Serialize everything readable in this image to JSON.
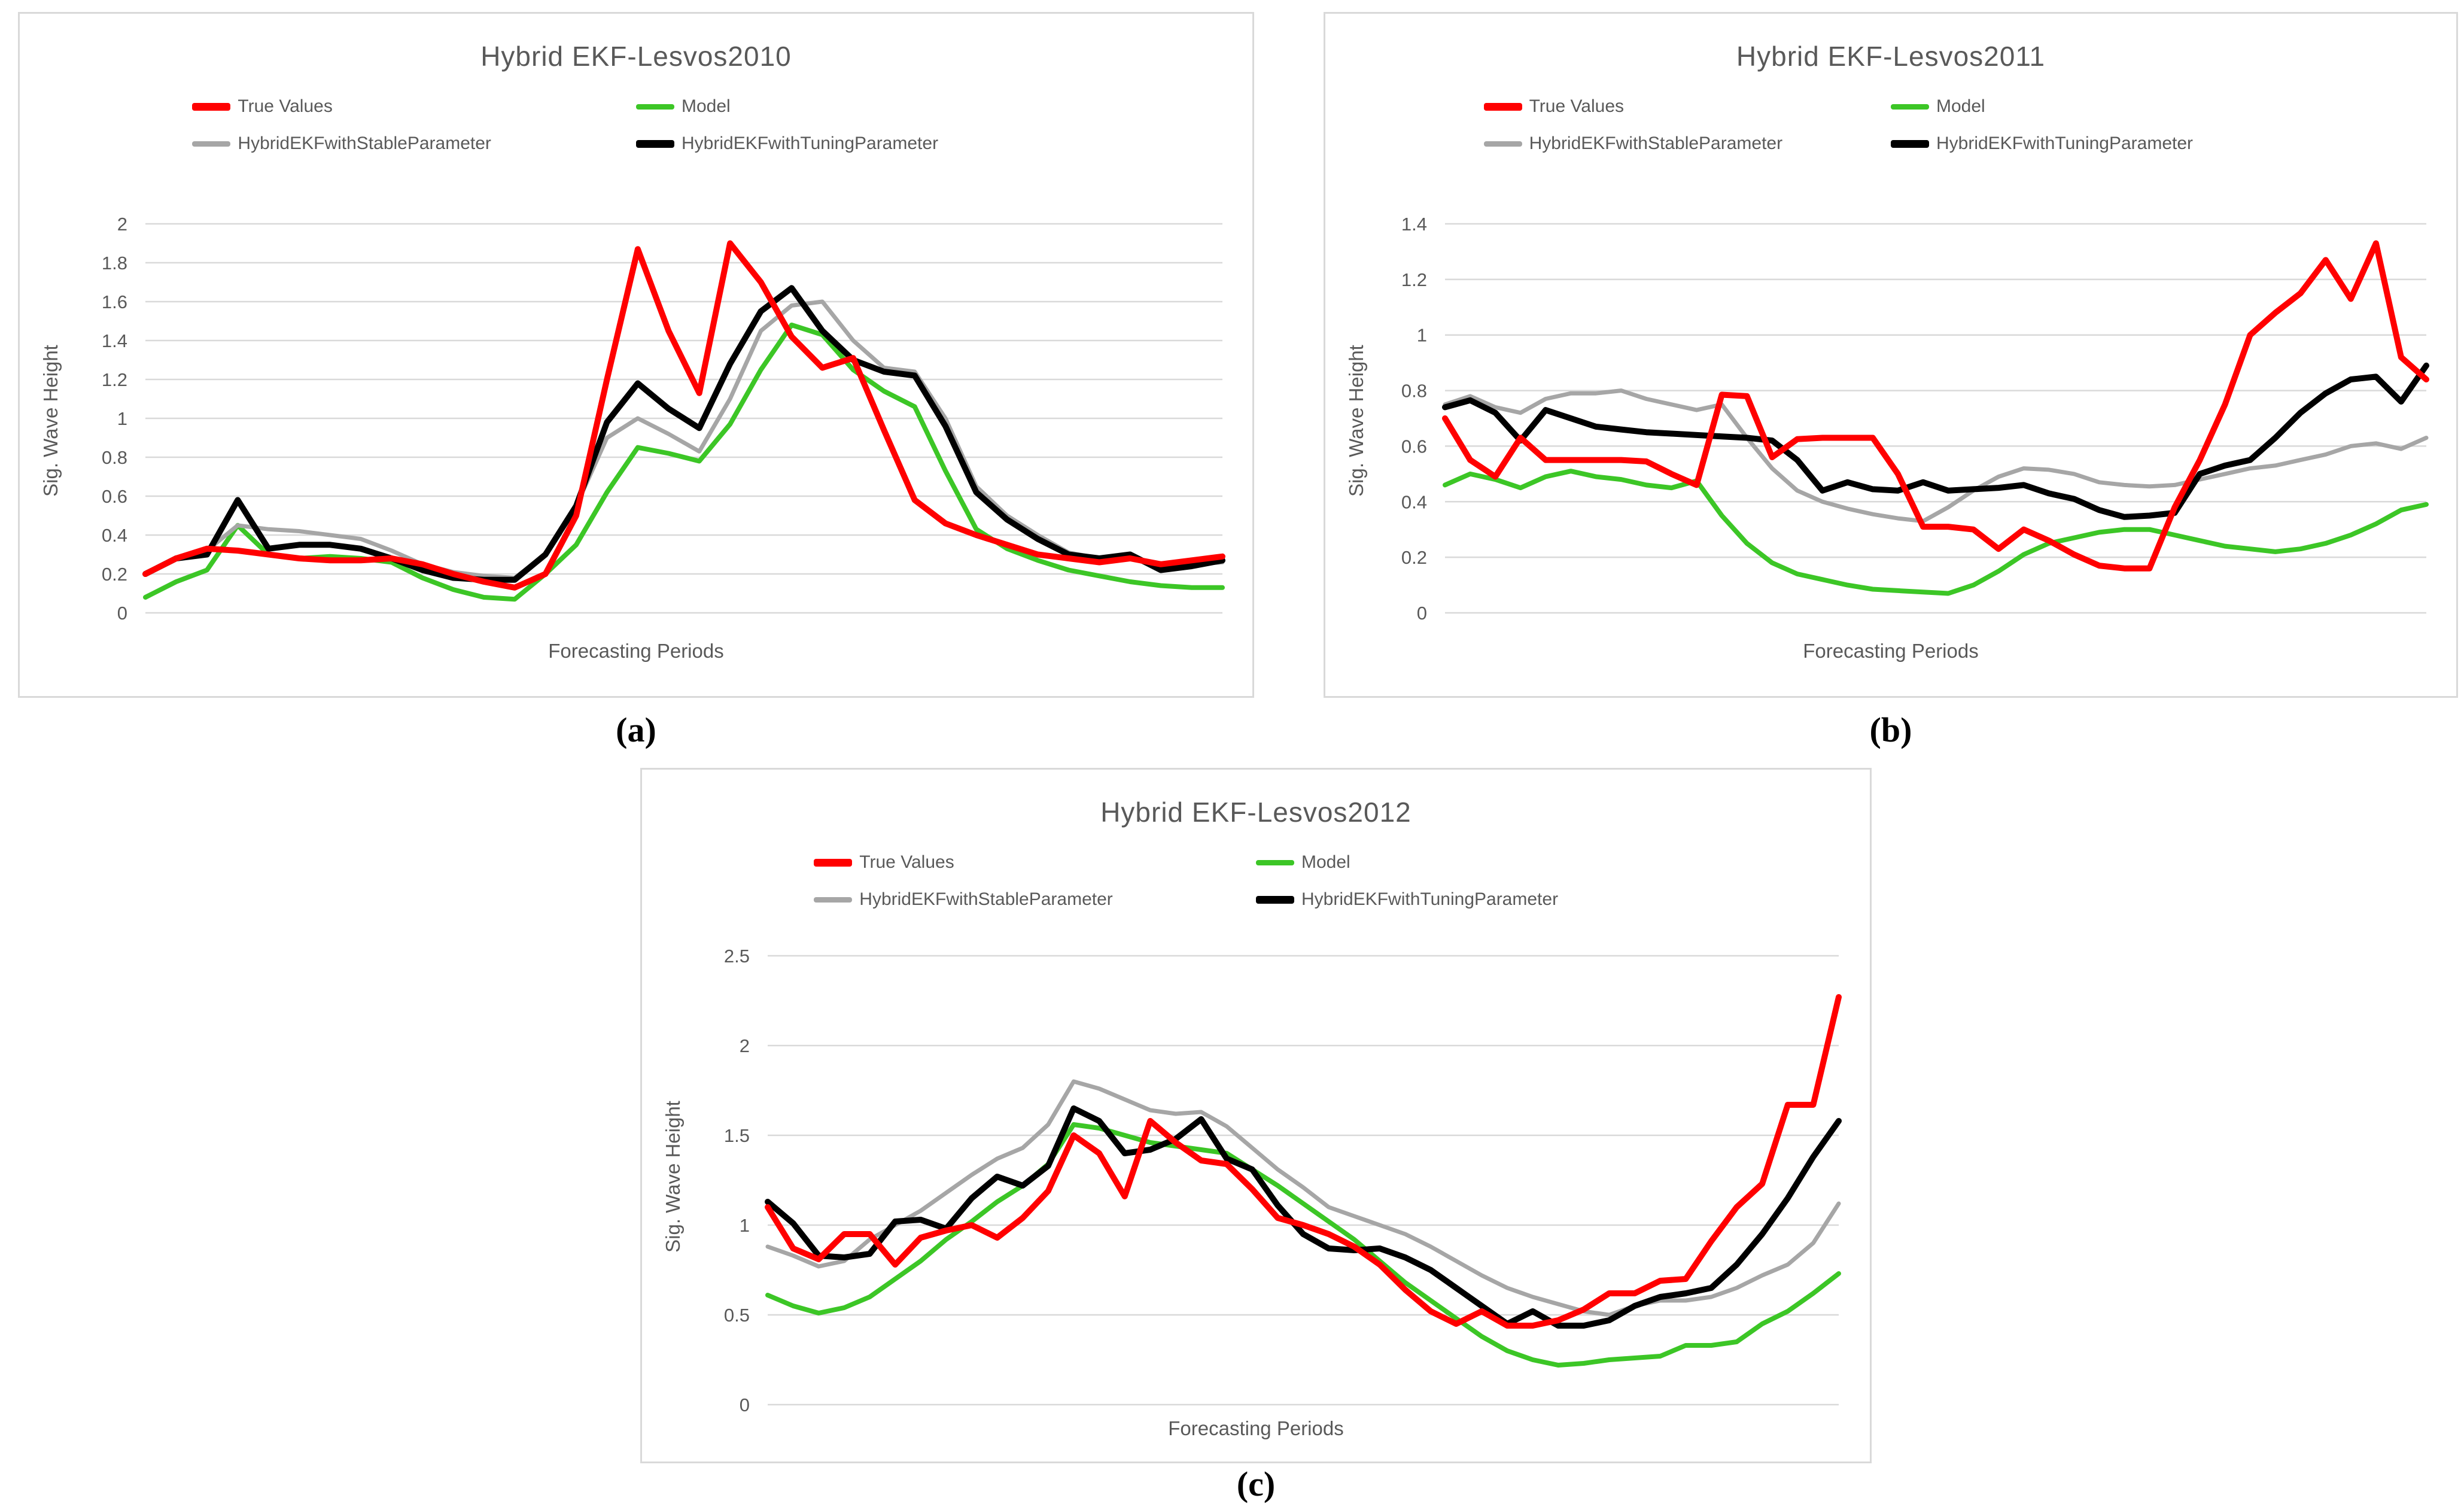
{
  "figure": {
    "background": "#ffffff",
    "grid_color": "#d9d9d9",
    "text_color": "#595959",
    "legend_position": "top"
  },
  "chart_data": [
    {
      "type": "line",
      "title": "Hybrid EKF-Lesvos2010",
      "caption": "(a)",
      "xlabel": "Forecasting Periods",
      "ylabel": "Sig. Wave Height",
      "ylim": [
        0,
        2
      ],
      "yticks": [
        "2",
        "1.8",
        "1.6",
        "1.4",
        "1.2",
        "1",
        "0.8",
        "0.6",
        "0.4",
        "0.2",
        "0"
      ],
      "grid": "horizontal",
      "series": [
        {
          "name": "True Values",
          "color": "#ff0000",
          "width": 10,
          "values": [
            0.2,
            0.28,
            0.33,
            0.32,
            0.3,
            0.28,
            0.27,
            0.27,
            0.28,
            0.25,
            0.2,
            0.16,
            0.13,
            0.2,
            0.5,
            1.2,
            1.87,
            1.45,
            1.13,
            1.9,
            1.7,
            1.42,
            1.26,
            1.31,
            0.94,
            0.58,
            0.46,
            0.4,
            0.35,
            0.3,
            0.28,
            0.26,
            0.28,
            0.25,
            0.27,
            0.29
          ]
        },
        {
          "name": "Model",
          "color": "#3cc626",
          "width": 8,
          "values": [
            0.08,
            0.16,
            0.22,
            0.45,
            0.3,
            0.28,
            0.29,
            0.28,
            0.26,
            0.18,
            0.12,
            0.08,
            0.07,
            0.2,
            0.35,
            0.62,
            0.85,
            0.82,
            0.78,
            0.97,
            1.25,
            1.48,
            1.43,
            1.25,
            1.14,
            1.06,
            0.73,
            0.43,
            0.33,
            0.27,
            0.22,
            0.19,
            0.16,
            0.14,
            0.13,
            0.13
          ]
        },
        {
          "name": "HybridEKFwithStableParameter",
          "color": "#a6a6a6",
          "width": 7,
          "values": [
            0.2,
            0.28,
            0.32,
            0.45,
            0.43,
            0.42,
            0.4,
            0.38,
            0.32,
            0.25,
            0.21,
            0.19,
            0.18,
            0.3,
            0.55,
            0.9,
            1.0,
            0.92,
            0.83,
            1.1,
            1.45,
            1.58,
            1.6,
            1.4,
            1.26,
            1.24,
            1.0,
            0.65,
            0.5,
            0.4,
            0.31,
            0.28,
            0.28,
            0.24,
            0.25,
            0.26
          ]
        },
        {
          "name": "HybridEKFwithTuningParameter",
          "color": "#000000",
          "width": 10,
          "values": [
            0.2,
            0.28,
            0.3,
            0.58,
            0.33,
            0.35,
            0.35,
            0.33,
            0.28,
            0.22,
            0.18,
            0.17,
            0.17,
            0.3,
            0.55,
            0.98,
            1.18,
            1.05,
            0.95,
            1.28,
            1.55,
            1.67,
            1.45,
            1.3,
            1.24,
            1.22,
            0.96,
            0.62,
            0.48,
            0.38,
            0.3,
            0.28,
            0.3,
            0.22,
            0.24,
            0.27
          ]
        }
      ]
    },
    {
      "type": "line",
      "title": "Hybrid EKF-Lesvos2011",
      "caption": "(b)",
      "xlabel": "Forecasting Periods",
      "ylabel": "Sig. Wave Height",
      "ylim": [
        0,
        1.4
      ],
      "yticks": [
        "1.4",
        "1.2",
        "1",
        "0.8",
        "0.6",
        "0.4",
        "0.2",
        "0"
      ],
      "grid": "horizontal",
      "series": [
        {
          "name": "True Values",
          "color": "#ff0000",
          "width": 10,
          "values": [
            0.7,
            0.55,
            0.49,
            0.63,
            0.55,
            0.55,
            0.55,
            0.55,
            0.545,
            0.5,
            0.46,
            0.785,
            0.78,
            0.56,
            0.625,
            0.63,
            0.63,
            0.63,
            0.5,
            0.31,
            0.31,
            0.3,
            0.23,
            0.3,
            0.26,
            0.21,
            0.17,
            0.16,
            0.16,
            0.38,
            0.55,
            0.75,
            1.0,
            1.08,
            1.15,
            1.27,
            1.13,
            1.33,
            0.92,
            0.84
          ]
        },
        {
          "name": "Model",
          "color": "#3cc626",
          "width": 8,
          "values": [
            0.46,
            0.5,
            0.48,
            0.45,
            0.49,
            0.51,
            0.49,
            0.48,
            0.46,
            0.45,
            0.475,
            0.35,
            0.25,
            0.18,
            0.14,
            0.12,
            0.1,
            0.085,
            0.08,
            0.075,
            0.07,
            0.1,
            0.15,
            0.21,
            0.25,
            0.27,
            0.29,
            0.3,
            0.3,
            0.28,
            0.26,
            0.24,
            0.23,
            0.22,
            0.23,
            0.25,
            0.28,
            0.32,
            0.37,
            0.39
          ]
        },
        {
          "name": "HybridEKFwithStableParameter",
          "color": "#a6a6a6",
          "width": 7,
          "values": [
            0.75,
            0.78,
            0.74,
            0.72,
            0.77,
            0.79,
            0.79,
            0.8,
            0.77,
            0.75,
            0.73,
            0.75,
            0.63,
            0.52,
            0.44,
            0.4,
            0.375,
            0.355,
            0.34,
            0.33,
            0.38,
            0.44,
            0.49,
            0.52,
            0.515,
            0.5,
            0.47,
            0.46,
            0.455,
            0.46,
            0.48,
            0.5,
            0.52,
            0.53,
            0.55,
            0.57,
            0.6,
            0.61,
            0.59,
            0.63
          ]
        },
        {
          "name": "HybridEKFwithTuningParameter",
          "color": "#000000",
          "width": 10,
          "values": [
            0.74,
            0.765,
            0.72,
            0.62,
            0.73,
            0.7,
            0.67,
            0.66,
            0.65,
            0.645,
            0.64,
            0.635,
            0.63,
            0.62,
            0.55,
            0.44,
            0.47,
            0.445,
            0.44,
            0.47,
            0.44,
            0.445,
            0.45,
            0.46,
            0.43,
            0.41,
            0.37,
            0.345,
            0.35,
            0.36,
            0.5,
            0.53,
            0.55,
            0.63,
            0.72,
            0.79,
            0.84,
            0.85,
            0.76,
            0.89
          ]
        }
      ]
    },
    {
      "type": "line",
      "title": "Hybrid EKF-Lesvos2012",
      "caption": "(c)",
      "xlabel": "Forecasting Periods",
      "ylabel": "Sig. Wave Height",
      "ylim": [
        0,
        2.5
      ],
      "yticks": [
        "2.5",
        "2",
        "1.5",
        "1",
        "0.5",
        "0"
      ],
      "grid": "horizontal",
      "series": [
        {
          "name": "True Values",
          "color": "#ff0000",
          "width": 10,
          "values": [
            1.1,
            0.87,
            0.81,
            0.95,
            0.95,
            0.78,
            0.93,
            0.97,
            1.0,
            0.93,
            1.04,
            1.19,
            1.5,
            1.4,
            1.16,
            1.58,
            1.46,
            1.36,
            1.34,
            1.2,
            1.04,
            1.0,
            0.95,
            0.88,
            0.78,
            0.64,
            0.52,
            0.45,
            0.52,
            0.44,
            0.44,
            0.47,
            0.53,
            0.62,
            0.62,
            0.69,
            0.7,
            0.91,
            1.1,
            1.23,
            1.67,
            1.67,
            2.27
          ]
        },
        {
          "name": "Model",
          "color": "#3cc626",
          "width": 8,
          "values": [
            0.61,
            0.55,
            0.51,
            0.54,
            0.6,
            0.7,
            0.8,
            0.92,
            1.02,
            1.13,
            1.22,
            1.34,
            1.56,
            1.54,
            1.5,
            1.46,
            1.44,
            1.42,
            1.4,
            1.31,
            1.22,
            1.12,
            1.02,
            0.92,
            0.8,
            0.68,
            0.58,
            0.48,
            0.38,
            0.3,
            0.25,
            0.22,
            0.23,
            0.25,
            0.26,
            0.27,
            0.33,
            0.33,
            0.35,
            0.45,
            0.52,
            0.62,
            0.73
          ]
        },
        {
          "name": "HybridEKFwithStableParameter",
          "color": "#a6a6a6",
          "width": 7,
          "values": [
            0.88,
            0.83,
            0.77,
            0.8,
            0.92,
            1.0,
            1.08,
            1.18,
            1.28,
            1.37,
            1.43,
            1.56,
            1.8,
            1.76,
            1.7,
            1.64,
            1.62,
            1.63,
            1.55,
            1.43,
            1.31,
            1.21,
            1.1,
            1.05,
            1.0,
            0.95,
            0.88,
            0.8,
            0.72,
            0.65,
            0.6,
            0.56,
            0.52,
            0.5,
            0.55,
            0.58,
            0.58,
            0.6,
            0.65,
            0.72,
            0.78,
            0.9,
            1.12
          ]
        },
        {
          "name": "HybridEKFwithTuningParameter",
          "color": "#000000",
          "width": 10,
          "values": [
            1.13,
            1.01,
            0.83,
            0.82,
            0.84,
            1.02,
            1.03,
            0.98,
            1.15,
            1.27,
            1.22,
            1.33,
            1.65,
            1.58,
            1.4,
            1.42,
            1.48,
            1.59,
            1.37,
            1.31,
            1.11,
            0.95,
            0.87,
            0.86,
            0.87,
            0.82,
            0.75,
            0.65,
            0.55,
            0.45,
            0.52,
            0.44,
            0.44,
            0.47,
            0.55,
            0.6,
            0.62,
            0.65,
            0.78,
            0.95,
            1.15,
            1.38,
            1.58
          ]
        }
      ]
    }
  ]
}
